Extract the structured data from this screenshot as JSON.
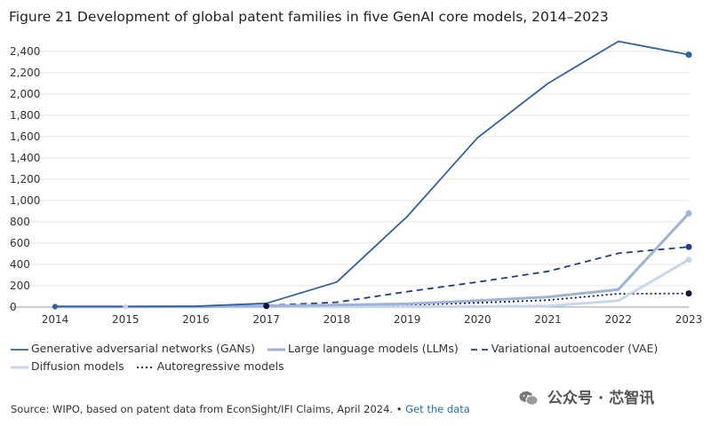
{
  "chart_data": {
    "type": "line",
    "title": "Figure 21 Development of global patent families in five GenAI core models, 2014–2023",
    "xlabel": "",
    "ylabel": "",
    "ylim": [
      0,
      2400
    ],
    "yticks": [
      "0",
      "200",
      "400",
      "600",
      "800",
      "1,000",
      "1,200",
      "1,400",
      "1,600",
      "1,800",
      "2,000",
      "2,200",
      "2,400"
    ],
    "ytick_values": [
      0,
      200,
      400,
      600,
      800,
      1000,
      1200,
      1400,
      1600,
      1800,
      2000,
      2200,
      2400
    ],
    "x": [
      "2014",
      "2015",
      "2016",
      "2017",
      "2018",
      "2019",
      "2020",
      "2021",
      "2022",
      "2023"
    ],
    "series": [
      {
        "name": "Generative adversarial networks (GANs)",
        "color": "#2e5fa8",
        "style": "solid",
        "values": [
          5,
          5,
          8,
          35,
          235,
          850,
          1590,
          2100,
          2495,
          2370
        ]
      },
      {
        "name": "Large language models (LLMs)",
        "color": "#9eb3d6",
        "style": "solid",
        "values": [
          3,
          3,
          3,
          10,
          20,
          30,
          60,
          95,
          165,
          880
        ]
      },
      {
        "name": "Variational autoencoder (VAE)",
        "color": "#1f3d8f",
        "style": "dashed",
        "values": [
          3,
          3,
          5,
          15,
          45,
          145,
          235,
          335,
          505,
          565
        ]
      },
      {
        "name": "Diffusion models",
        "color": "#c9d7ec",
        "style": "solid",
        "values": [
          2,
          2,
          2,
          2,
          2,
          3,
          5,
          10,
          60,
          445
        ]
      },
      {
        "name": "Autoregressive models",
        "color": "#0d1440",
        "style": "dotted",
        "values": [
          2,
          2,
          3,
          10,
          15,
          20,
          40,
          65,
          125,
          128
        ]
      }
    ],
    "legend_position": "bottom"
  },
  "source": {
    "text": "Source: WIPO, based on patent data from EconSight/IFI Claims, April 2024. •",
    "link": "Get the data"
  },
  "watermark": "公众号 · 芯智讯"
}
